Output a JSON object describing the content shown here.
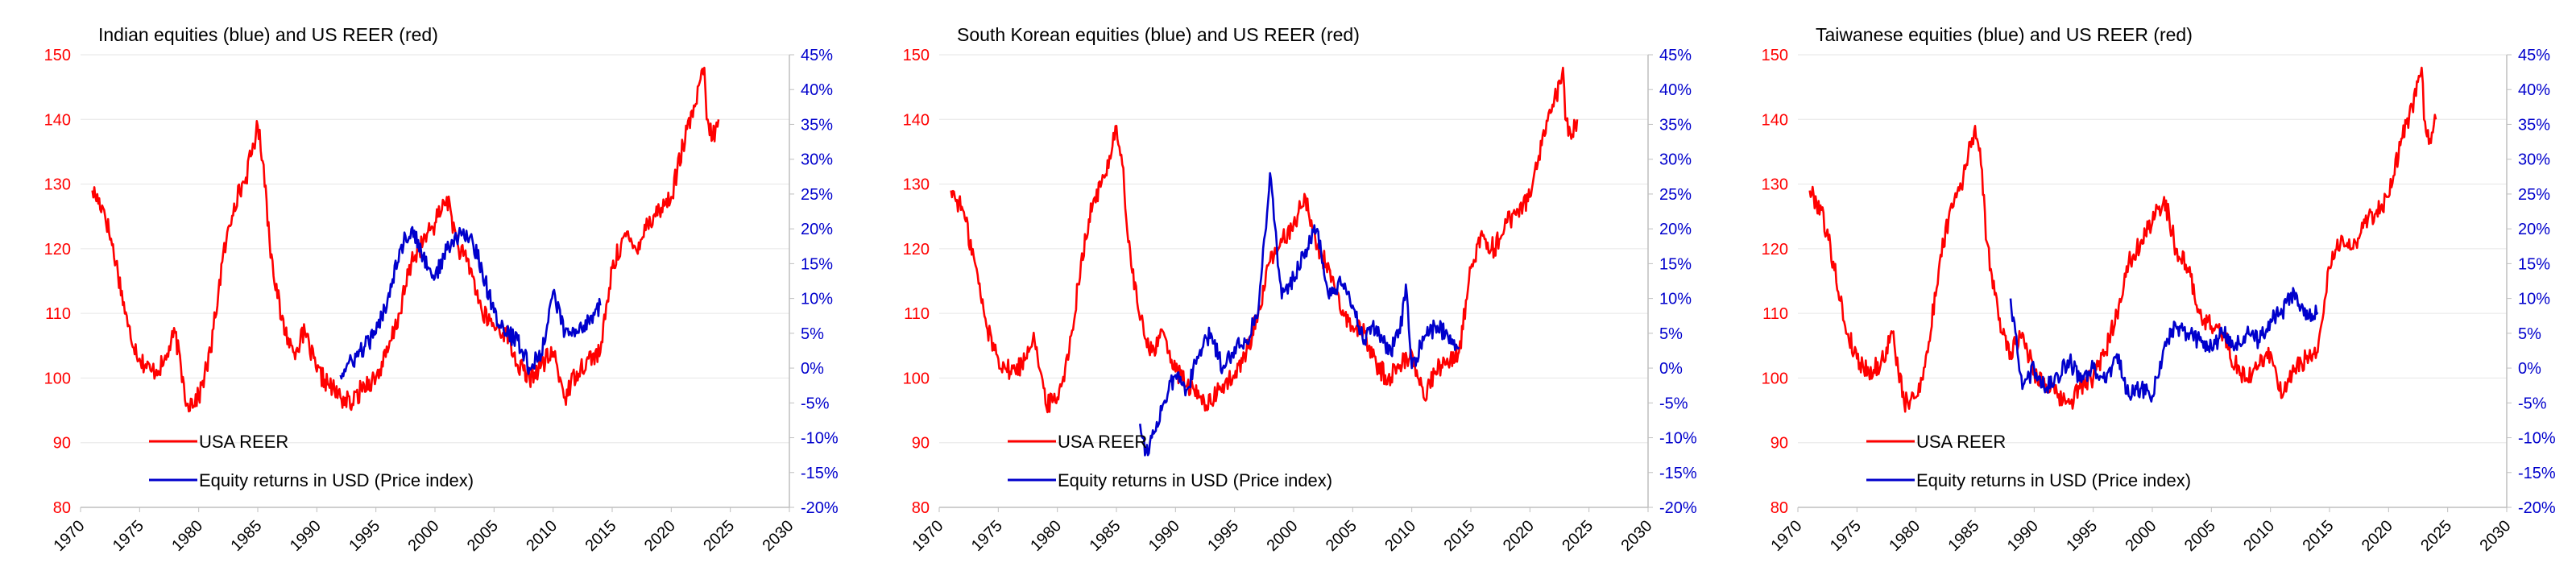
{
  "colors": {
    "reer": "#ff0000",
    "equity": "#0000cc",
    "grid": "#e6e6e6",
    "axis": "#bfbfbf"
  },
  "chart_data": [
    {
      "type": "line",
      "title": "Indian equities (blue) and US REER (red)",
      "x_ticks": [
        "1970",
        "1975",
        "1980",
        "1985",
        "1990",
        "1995",
        "2000",
        "2005",
        "2010",
        "2015",
        "2020",
        "2025",
        "2030"
      ],
      "xlim": [
        1970,
        2030
      ],
      "ylim_left": [
        80,
        150
      ],
      "y_ticks_left": [
        "150",
        "140",
        "130",
        "120",
        "110",
        "100",
        "90",
        "80"
      ],
      "ylim_right": [
        -20,
        45
      ],
      "y_ticks_right": [
        "45%",
        "40%",
        "35%",
        "30%",
        "25%",
        "20%",
        "15%",
        "10%",
        "5%",
        "0%",
        "-5%",
        "-10%",
        "-15%",
        "-20%"
      ],
      "legend": [
        "USA REER",
        "Equity returns in USD (Price index)"
      ],
      "series": [
        {
          "name": "USA REER",
          "axis": "left",
          "x": [
            1971,
            1972,
            1973,
            1974,
            1975,
            1976,
            1977,
            1978,
            1979,
            1980,
            1981,
            1982,
            1983,
            1984,
            1985,
            1985.5,
            1986,
            1987,
            1988,
            1989,
            1990,
            1991,
            1992,
            1993,
            1994,
            1995,
            1996,
            1997,
            1998,
            1999,
            2000,
            2001,
            2002,
            2003,
            2004,
            2005,
            2006,
            2007,
            2008,
            2009,
            2010,
            2011,
            2012,
            2013,
            2014,
            2015,
            2016,
            2017,
            2018,
            2019,
            2020,
            2021,
            2022,
            2022.8,
            2023,
            2023.5,
            2024
          ],
          "values": [
            129,
            126,
            118,
            108,
            103,
            101,
            102,
            107,
            96,
            97,
            104,
            118,
            127,
            131,
            139,
            133,
            121,
            109,
            104,
            107,
            101,
            99,
            97,
            96,
            99,
            100,
            104,
            110,
            118,
            121,
            124,
            128,
            120,
            117,
            110,
            108,
            107,
            102,
            100,
            102,
            104,
            97,
            101,
            103,
            104,
            117,
            122,
            120,
            124,
            126,
            128,
            136,
            142,
            148,
            140,
            137,
            140
          ]
        },
        {
          "name": "Equity returns in USD (Price index)",
          "axis": "right",
          "x": [
            1992,
            1993,
            1994,
            1995,
            1996,
            1997,
            1998,
            1999,
            2000,
            2001,
            2002,
            2003,
            2004,
            2005,
            2006,
            2007,
            2008,
            2009,
            2010,
            2011,
            2012,
            2013,
            2014
          ],
          "values": [
            -1,
            1,
            3,
            5,
            10,
            17,
            20,
            16,
            13,
            17,
            19,
            19,
            14,
            8,
            5,
            4,
            0,
            2,
            11,
            5,
            5,
            7,
            9
          ]
        }
      ]
    },
    {
      "type": "line",
      "title": "South Korean equities (blue) and US REER (red)",
      "x_ticks": [
        "1970",
        "1975",
        "1980",
        "1985",
        "1990",
        "1995",
        "2000",
        "2005",
        "2010",
        "2015",
        "2020",
        "2025",
        "2030"
      ],
      "xlim": [
        1970,
        2030
      ],
      "ylim_left": [
        80,
        150
      ],
      "y_ticks_left": [
        "150",
        "140",
        "130",
        "120",
        "110",
        "100",
        "90",
        "80"
      ],
      "ylim_right": [
        -20,
        45
      ],
      "y_ticks_right": [
        "45%",
        "40%",
        "35%",
        "30%",
        "25%",
        "20%",
        "15%",
        "10%",
        "5%",
        "0%",
        "-5%",
        "-10%",
        "-15%",
        "-20%"
      ],
      "legend": [
        "USA REER",
        "Equity returns in USD (Price index)"
      ],
      "series": [
        {
          "name": "USA REER",
          "axis": "left",
          "x": [
            1971,
            1972,
            1973,
            1974,
            1975,
            1976,
            1977,
            1978,
            1979,
            1980,
            1981,
            1982,
            1983,
            1984,
            1985,
            1985.5,
            1986,
            1987,
            1988,
            1989,
            1990,
            1991,
            1992,
            1993,
            1994,
            1995,
            1996,
            1997,
            1998,
            1999,
            2000,
            2001,
            2002,
            2003,
            2004,
            2005,
            2006,
            2007,
            2008,
            2009,
            2010,
            2011,
            2012,
            2013,
            2014,
            2015,
            2016,
            2017,
            2018,
            2019,
            2020,
            2021,
            2022,
            2022.8,
            2023,
            2023.5,
            2024
          ],
          "values": [
            129,
            126,
            118,
            108,
            103,
            101,
            102,
            107,
            96,
            97,
            104,
            118,
            127,
            131,
            139,
            133,
            121,
            109,
            104,
            107,
            101,
            99,
            97,
            96,
            99,
            100,
            104,
            110,
            118,
            121,
            124,
            128,
            120,
            117,
            110,
            108,
            107,
            102,
            100,
            102,
            104,
            97,
            101,
            103,
            104,
            117,
            122,
            120,
            124,
            126,
            128,
            136,
            142,
            148,
            140,
            137,
            140
          ]
        },
        {
          "name": "Equity returns in USD (Price index)",
          "axis": "right",
          "x": [
            1987,
            1987.5,
            1988,
            1989,
            1990,
            1991,
            1992,
            1993,
            1994,
            1995,
            1996,
            1997,
            1998,
            1999,
            2000,
            2001,
            2002,
            2003,
            2004,
            2005,
            2006,
            2007,
            2008,
            2009,
            2009.5,
            2010,
            2011,
            2012,
            2013,
            2014
          ],
          "values": [
            -8,
            -12,
            -10,
            -5,
            -1,
            -3,
            2,
            5,
            0,
            3,
            4,
            8,
            28,
            10,
            13,
            17,
            20,
            10,
            12,
            9,
            4,
            6,
            2,
            5,
            12,
            0,
            4,
            6,
            5,
            3
          ]
        }
      ]
    },
    {
      "type": "line",
      "title": "Taiwanese equities (blue) and US REER (red)",
      "x_ticks": [
        "1970",
        "1975",
        "1980",
        "1985",
        "1990",
        "1995",
        "2000",
        "2005",
        "2010",
        "2015",
        "2020",
        "2025",
        "2030"
      ],
      "xlim": [
        1970,
        2030
      ],
      "ylim_left": [
        80,
        150
      ],
      "y_ticks_left": [
        "150",
        "140",
        "130",
        "120",
        "110",
        "100",
        "90",
        "80"
      ],
      "ylim_right": [
        -20,
        45
      ],
      "y_ticks_right": [
        "45%",
        "40%",
        "35%",
        "30%",
        "25%",
        "20%",
        "15%",
        "10%",
        "5%",
        "0%",
        "-5%",
        "-10%",
        "-15%",
        "-20%"
      ],
      "legend": [
        "USA REER",
        "Equity returns in USD (Price index)"
      ],
      "series": [
        {
          "name": "USA REER",
          "axis": "left",
          "x": [
            1971,
            1972,
            1973,
            1974,
            1975,
            1976,
            1977,
            1978,
            1979,
            1980,
            1981,
            1982,
            1983,
            1984,
            1985,
            1985.5,
            1986,
            1987,
            1988,
            1989,
            1990,
            1991,
            1992,
            1993,
            1994,
            1995,
            1996,
            1997,
            1998,
            1999,
            2000,
            2001,
            2002,
            2003,
            2004,
            2005,
            2006,
            2007,
            2008,
            2009,
            2010,
            2011,
            2012,
            2013,
            2014,
            2015,
            2016,
            2017,
            2018,
            2019,
            2020,
            2021,
            2022,
            2022.8,
            2023,
            2023.5,
            2024
          ],
          "values": [
            129,
            126,
            118,
            108,
            103,
            101,
            102,
            107,
            96,
            97,
            104,
            118,
            127,
            131,
            139,
            133,
            121,
            109,
            104,
            107,
            101,
            99,
            97,
            96,
            99,
            100,
            104,
            110,
            118,
            121,
            124,
            128,
            120,
            117,
            110,
            108,
            107,
            102,
            100,
            102,
            104,
            97,
            101,
            103,
            104,
            117,
            122,
            120,
            124,
            126,
            128,
            136,
            142,
            148,
            140,
            137,
            140
          ]
        },
        {
          "name": "Equity returns in USD (Price index)",
          "axis": "right",
          "x": [
            1988,
            1989,
            1990,
            1991,
            1992,
            1993,
            1994,
            1995,
            1996,
            1997,
            1998,
            1999,
            2000,
            2001,
            2002,
            2003,
            2004,
            2005,
            2006,
            2007,
            2008,
            2009,
            2010,
            2011,
            2012,
            2013,
            2014
          ],
          "values": [
            10,
            -3,
            0,
            -3,
            -1,
            1,
            -2,
            0,
            -2,
            2,
            -4,
            -3,
            -4,
            3,
            6,
            5,
            4,
            3,
            5,
            3,
            5,
            4,
            7,
            8,
            11,
            7,
            8
          ]
        }
      ]
    }
  ]
}
